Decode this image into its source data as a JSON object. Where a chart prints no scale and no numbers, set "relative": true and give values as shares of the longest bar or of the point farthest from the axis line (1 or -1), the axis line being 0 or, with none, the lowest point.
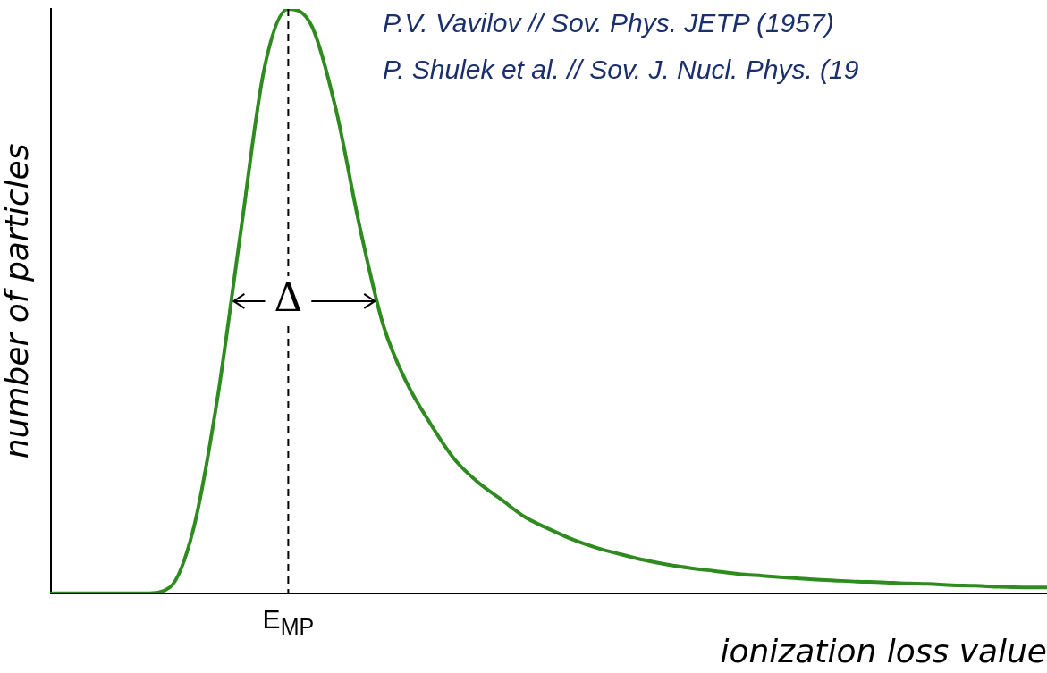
{
  "chart_data": {
    "type": "line",
    "relative": true,
    "xlabel": "ionization loss value",
    "ylabel": "number of particles",
    "categories": [
      null,
      null,
      null,
      null,
      null,
      null,
      null,
      null,
      null,
      null,
      null,
      null,
      null,
      null,
      null,
      null,
      null,
      null,
      null,
      null,
      null,
      null,
      null,
      null,
      null,
      null,
      null,
      null,
      null,
      null,
      null,
      null,
      null,
      null,
      null,
      null,
      null,
      null,
      null,
      null,
      null,
      null,
      null
    ],
    "series": [
      {
        "color": "#2e8b1e",
        "values": [
          0,
          0,
          0,
          0,
          0,
          0.01,
          0.11,
          0.33,
          0.62,
          0.9,
          1,
          0.97,
          0.83,
          0.63,
          0.46,
          0.36,
          0.29,
          0.23,
          0.19,
          0.16,
          0.13,
          0.11,
          0.092,
          0.078,
          0.067,
          0.057,
          0.049,
          0.043,
          0.038,
          0.033,
          0.03,
          0.027,
          0.024,
          0.022,
          0.02,
          0.019,
          0.017,
          0.016,
          0.014,
          0.013,
          0.011,
          0.01,
          0.01
        ]
      }
    ],
    "ref_lines": [
      {
        "axis": "x",
        "label": "E$_{MP}$",
        "line_style": "dashed",
        "color": "#000000"
      }
    ],
    "annotations": [
      "Δ",
      "P.V. Vavilov // Sov. Phys. JETP (1957)",
      "P. Shulek et al. // Sov. J. Nucl. Phys. (19"
    ],
    "grid": false,
    "legend": false,
    "marker": "none",
    "line_style": "solid"
  }
}
